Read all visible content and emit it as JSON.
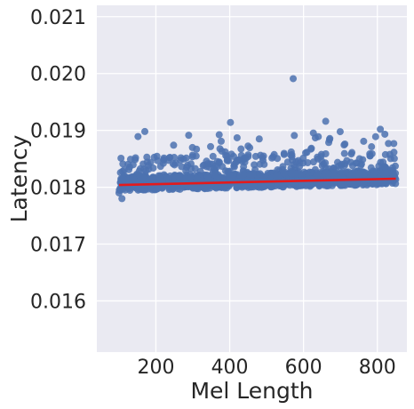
{
  "chart_data": {
    "type": "scatter",
    "xlabel": "Mel Length",
    "ylabel": "Latency",
    "xlim": [
      40,
      880
    ],
    "ylim": [
      0.0151,
      0.0212
    ],
    "x_ticks": [
      200,
      400,
      600,
      800
    ],
    "x_tick_labels": [
      "200",
      "400",
      "600",
      "800"
    ],
    "y_ticks": [
      0.016,
      0.017,
      0.018,
      0.019,
      0.02,
      0.021
    ],
    "y_tick_labels": [
      "0.016",
      "0.017",
      "0.018",
      "0.019",
      "0.020",
      "0.021"
    ],
    "grid": true,
    "background_color": "#eaeaf2",
    "grid_color": "#ffffff",
    "point_color": "#4c72b0",
    "regression_color": "#e41a1c",
    "regression_line": {
      "x": [
        100,
        850
      ],
      "y": [
        0.01804,
        0.01815
      ]
    },
    "notable_points": [
      {
        "x": 572,
        "y": 0.01991
      },
      {
        "x": 402,
        "y": 0.01914
      },
      {
        "x": 660,
        "y": 0.01916
      },
      {
        "x": 808,
        "y": 0.01902
      },
      {
        "x": 170,
        "y": 0.01898
      },
      {
        "x": 420,
        "y": 0.01887
      },
      {
        "x": 480,
        "y": 0.01885
      },
      {
        "x": 575,
        "y": 0.01891
      },
      {
        "x": 640,
        "y": 0.01889
      },
      {
        "x": 712,
        "y": 0.01876
      },
      {
        "x": 830,
        "y": 0.01877
      },
      {
        "x": 310,
        "y": 0.01867
      },
      {
        "x": 248,
        "y": 0.01874
      },
      {
        "x": 100,
        "y": 0.0179
      },
      {
        "x": 108,
        "y": 0.0178
      }
    ]
  }
}
